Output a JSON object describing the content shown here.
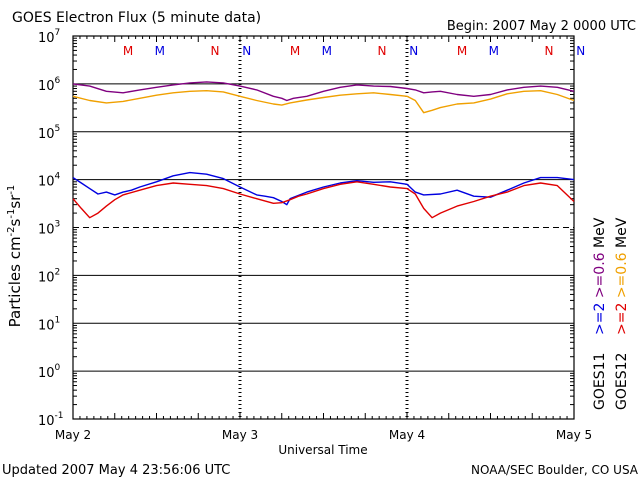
{
  "header": {
    "title": "GOES Electron Flux (5 minute data)",
    "begin": "Begin: 2007 May 2 0000 UTC"
  },
  "footer": {
    "updated": "Updated 2007 May  4 23:56:06 UTC",
    "source": "NOAA/SEC Boulder, CO USA"
  },
  "chart_data": {
    "type": "line",
    "title": "GOES Electron Flux (5 minute data)",
    "xlabel": "Universal Time",
    "ylabel": "Particles cm-2s-1sr-1",
    "y_scale": "log",
    "ylim_exponent": [
      -1,
      7
    ],
    "y_ticks": [
      {
        "base": "10",
        "exp": "7"
      },
      {
        "base": "10",
        "exp": "6"
      },
      {
        "base": "10",
        "exp": "5"
      },
      {
        "base": "10",
        "exp": "4"
      },
      {
        "base": "10",
        "exp": "3"
      },
      {
        "base": "10",
        "exp": "2"
      },
      {
        "base": "10",
        "exp": "1"
      },
      {
        "base": "10",
        "exp": "0"
      },
      {
        "base": "10",
        "exp": "-1"
      }
    ],
    "x_ticks": [
      "May 2",
      "May 3",
      "May 4",
      "May 5"
    ],
    "threshold_exponent": 3,
    "reference_exponents": [
      2,
      1,
      0
    ],
    "mn_markers": [
      {
        "day": 0.33,
        "label": "M",
        "color": "#e00000"
      },
      {
        "day": 0.52,
        "label": "M",
        "color": "#0000e0"
      },
      {
        "day": 0.85,
        "label": "N",
        "color": "#e00000"
      },
      {
        "day": 1.04,
        "label": "N",
        "color": "#0000e0"
      },
      {
        "day": 1.33,
        "label": "M",
        "color": "#e00000"
      },
      {
        "day": 1.52,
        "label": "M",
        "color": "#0000e0"
      },
      {
        "day": 1.85,
        "label": "N",
        "color": "#e00000"
      },
      {
        "day": 2.04,
        "label": "N",
        "color": "#0000e0"
      },
      {
        "day": 2.33,
        "label": "M",
        "color": "#e00000"
      },
      {
        "day": 2.52,
        "label": "M",
        "color": "#0000e0"
      },
      {
        "day": 2.85,
        "label": "N",
        "color": "#e00000"
      },
      {
        "day": 3.04,
        "label": "N",
        "color": "#0000e0"
      }
    ],
    "legend": {
      "columns": [
        {
          "satellite": "GOES11",
          "e2": ">=2",
          "e06": ">=0.6",
          "unit": "MeV",
          "e2_color": "#0000e0",
          "e06_color": "#800080"
        },
        {
          "satellite": "GOES12",
          "e2": ">=2",
          "e06": ">=0.6",
          "unit": "MeV",
          "e2_color": "#e00000",
          "e06_color": "#f0a000"
        }
      ]
    },
    "series": [
      {
        "color": "#800080",
        "x": [
          0,
          0.1,
          0.2,
          0.3,
          0.4,
          0.5,
          0.6,
          0.7,
          0.8,
          0.9,
          1.0,
          1.1,
          1.2,
          1.25,
          1.28,
          1.32,
          1.4,
          1.5,
          1.6,
          1.7,
          1.8,
          1.9,
          2.0,
          2.05,
          2.1,
          2.15,
          2.2,
          2.3,
          2.4,
          2.5,
          2.6,
          2.7,
          2.8,
          2.9,
          3.0
        ],
        "y": [
          1000000.0,
          900000.0,
          700000.0,
          650000.0,
          750000.0,
          850000.0,
          950000.0,
          1050000.0,
          1100000.0,
          1050000.0,
          900000.0,
          750000.0,
          550000.0,
          500000.0,
          450000.0,
          500000.0,
          550000.0,
          700000.0,
          850000.0,
          950000.0,
          900000.0,
          880000.0,
          800000.0,
          750000.0,
          650000.0,
          680000.0,
          700000.0,
          600000.0,
          550000.0,
          600000.0,
          750000.0,
          850000.0,
          900000.0,
          850000.0,
          700000.0
        ]
      },
      {
        "color": "#f0a000",
        "x": [
          0,
          0.1,
          0.2,
          0.3,
          0.4,
          0.5,
          0.6,
          0.7,
          0.8,
          0.9,
          1.0,
          1.1,
          1.2,
          1.25,
          1.3,
          1.4,
          1.5,
          1.6,
          1.7,
          1.8,
          1.9,
          2.0,
          2.05,
          2.1,
          2.15,
          2.2,
          2.3,
          2.4,
          2.5,
          2.6,
          2.7,
          2.8,
          2.9,
          3.0
        ],
        "y": [
          550000.0,
          450000.0,
          400000.0,
          430000.0,
          500000.0,
          580000.0,
          650000.0,
          700000.0,
          720000.0,
          680000.0,
          550000.0,
          450000.0,
          380000.0,
          360000.0,
          400000.0,
          460000.0,
          520000.0,
          580000.0,
          620000.0,
          650000.0,
          600000.0,
          550000.0,
          450000.0,
          250000.0,
          280000.0,
          320000.0,
          380000.0,
          400000.0,
          480000.0,
          620000.0,
          700000.0,
          720000.0,
          600000.0,
          450000.0
        ]
      },
      {
        "color": "#0000e0",
        "x": [
          0,
          0.05,
          0.1,
          0.15,
          0.2,
          0.25,
          0.3,
          0.35,
          0.4,
          0.5,
          0.6,
          0.7,
          0.8,
          0.9,
          1.0,
          1.1,
          1.15,
          1.2,
          1.25,
          1.28,
          1.3,
          1.4,
          1.5,
          1.6,
          1.7,
          1.8,
          1.9,
          2.0,
          2.05,
          2.1,
          2.2,
          2.3,
          2.4,
          2.5,
          2.6,
          2.7,
          2.8,
          2.9,
          3.0
        ],
        "y": [
          11000.0,
          8500.0,
          6500.0,
          5000.0,
          5500.0,
          4800.0,
          5500.0,
          6000.0,
          7000.0,
          9000.0,
          12000.0,
          14000.0,
          13000.0,
          10500.0,
          7000.0,
          4800.0,
          4500.0,
          4200.0,
          3500.0,
          3000.0,
          4000.0,
          5500.0,
          7000.0,
          8500.0,
          9500.0,
          8800.0,
          9000.0,
          8000.0,
          5500.0,
          4800.0,
          5000.0,
          6000.0,
          4500.0,
          4300.0,
          6000.0,
          8500.0,
          11000.0,
          11000.0,
          10000.0
        ]
      },
      {
        "color": "#e00000",
        "x": [
          0,
          0.05,
          0.1,
          0.15,
          0.2,
          0.25,
          0.3,
          0.4,
          0.5,
          0.6,
          0.7,
          0.8,
          0.9,
          1.0,
          1.1,
          1.2,
          1.25,
          1.3,
          1.35,
          1.4,
          1.5,
          1.6,
          1.7,
          1.8,
          1.9,
          2.0,
          2.05,
          2.1,
          2.15,
          2.2,
          2.3,
          2.4,
          2.5,
          2.6,
          2.7,
          2.8,
          2.9,
          3.0
        ],
        "y": [
          4000.0,
          2500.0,
          1600.0,
          2000.0,
          2800.0,
          3800.0,
          4800.0,
          6000.0,
          7500.0,
          8500.0,
          8000.0,
          7500.0,
          6500.0,
          5000.0,
          4000.0,
          3200.0,
          3300.0,
          3800.0,
          4500.0,
          5000.0,
          6500.0,
          8000.0,
          9000.0,
          8000.0,
          7000.0,
          6500.0,
          5000.0,
          2500.0,
          1600.0,
          2000.0,
          2800.0,
          3500.0,
          4500.0,
          5500.0,
          7500.0,
          8500.0,
          7500.0,
          3500.0
        ]
      }
    ]
  }
}
